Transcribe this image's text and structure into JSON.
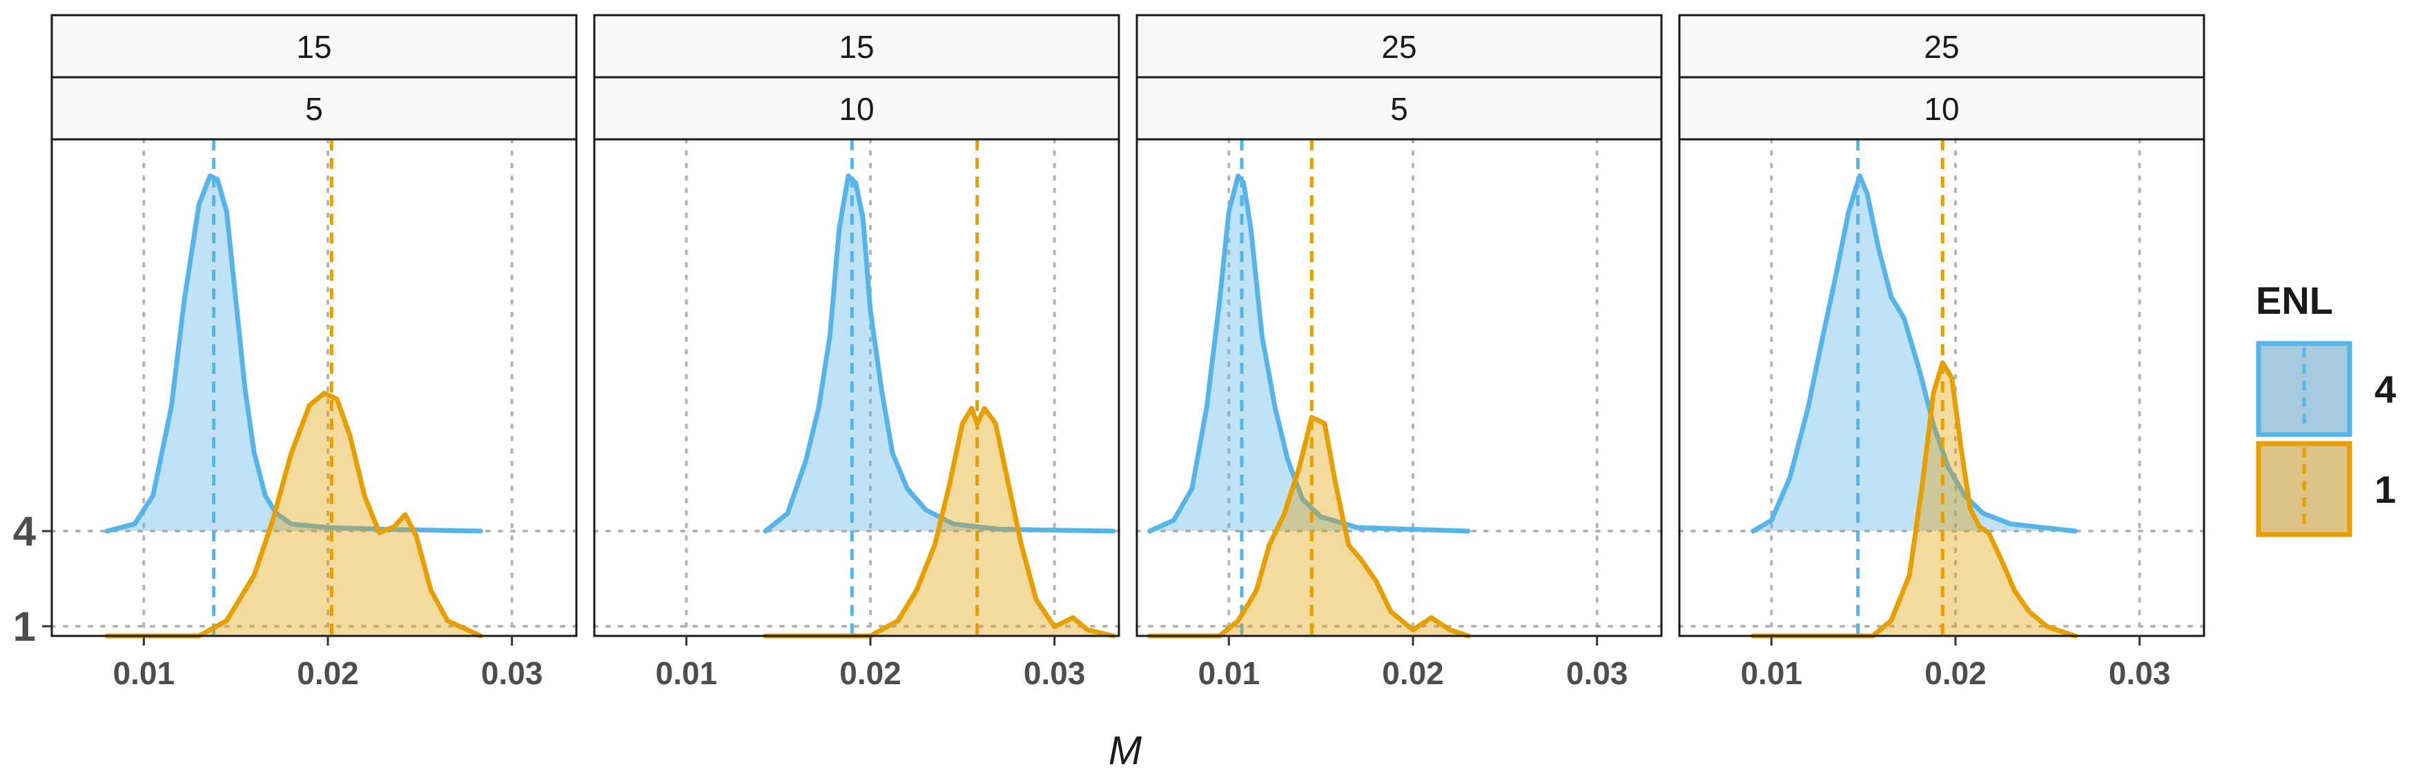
{
  "chart_data": {
    "type": "ridgeline-density",
    "xlabel": "M",
    "ylabel": "",
    "x_ticks": [
      "0.01",
      "0.02",
      "0.03"
    ],
    "x_tick_values": [
      0.01,
      0.02,
      0.03
    ],
    "xlim": [
      0.005,
      0.0335
    ],
    "y_ticks": [
      "4",
      "1"
    ],
    "legend": {
      "title": "ENL",
      "position": "right",
      "entries": [
        {
          "label": "4",
          "color": "#56B4E9"
        },
        {
          "label": "1",
          "color": "#E69F00"
        }
      ]
    },
    "colors": {
      "4": "#56B4E9",
      "1": "#E69F00"
    },
    "panels": [
      {
        "strip_top": "15",
        "strip_bottom": "5",
        "series": [
          {
            "name": "4",
            "mean": 0.0138,
            "x": [
              0.008,
              0.0095,
              0.0105,
              0.0115,
              0.0122,
              0.013,
              0.0136,
              0.014,
              0.0145,
              0.015,
              0.0155,
              0.016,
              0.0166,
              0.0172,
              0.018,
              0.02,
              0.023,
              0.0283
            ],
            "y": [
              0.0,
              0.02,
              0.1,
              0.35,
              0.65,
              0.92,
              1.0,
              0.99,
              0.9,
              0.65,
              0.4,
              0.22,
              0.1,
              0.05,
              0.02,
              0.01,
              0.005,
              0.0
            ]
          },
          {
            "name": "1",
            "mean": 0.0202,
            "x": [
              0.008,
              0.013,
              0.0145,
              0.016,
              0.017,
              0.018,
              0.019,
              0.0198,
              0.0205,
              0.0212,
              0.022,
              0.0228,
              0.0236,
              0.0242,
              0.0248,
              0.0256,
              0.0265,
              0.0283
            ],
            "y": [
              0.0,
              0.0,
              0.05,
              0.2,
              0.38,
              0.6,
              0.76,
              0.8,
              0.78,
              0.66,
              0.46,
              0.34,
              0.36,
              0.4,
              0.33,
              0.15,
              0.05,
              0.0
            ]
          }
        ]
      },
      {
        "strip_top": "15",
        "strip_bottom": "10",
        "series": [
          {
            "name": "4",
            "mean": 0.019,
            "x": [
              0.0143,
              0.0155,
              0.0165,
              0.0172,
              0.0178,
              0.0183,
              0.0188,
              0.0192,
              0.0196,
              0.02,
              0.0206,
              0.0212,
              0.022,
              0.023,
              0.0245,
              0.027,
              0.0332
            ],
            "y": [
              0.0,
              0.05,
              0.2,
              0.35,
              0.55,
              0.85,
              1.0,
              0.98,
              0.88,
              0.62,
              0.4,
              0.22,
              0.12,
              0.06,
              0.02,
              0.005,
              0.0
            ]
          },
          {
            "name": "1",
            "mean": 0.0258,
            "x": [
              0.0143,
              0.02,
              0.0215,
              0.0225,
              0.0235,
              0.0243,
              0.025,
              0.0255,
              0.0258,
              0.0262,
              0.0268,
              0.0275,
              0.0282,
              0.029,
              0.03,
              0.031,
              0.0318,
              0.0332
            ],
            "y": [
              0.0,
              0.0,
              0.05,
              0.15,
              0.3,
              0.5,
              0.7,
              0.75,
              0.7,
              0.75,
              0.7,
              0.5,
              0.3,
              0.12,
              0.03,
              0.06,
              0.02,
              0.0
            ]
          }
        ]
      },
      {
        "strip_top": "25",
        "strip_bottom": "5",
        "series": [
          {
            "name": "4",
            "mean": 0.0107,
            "x": [
              0.0057,
              0.007,
              0.008,
              0.0088,
              0.0095,
              0.01,
              0.0105,
              0.0108,
              0.0112,
              0.0118,
              0.0125,
              0.0132,
              0.014,
              0.015,
              0.017,
              0.023
            ],
            "y": [
              0.0,
              0.03,
              0.12,
              0.35,
              0.65,
              0.9,
              1.0,
              0.98,
              0.85,
              0.55,
              0.35,
              0.2,
              0.09,
              0.04,
              0.01,
              0.0
            ]
          },
          {
            "name": "1",
            "mean": 0.0145,
            "x": [
              0.0057,
              0.0095,
              0.0105,
              0.0115,
              0.0122,
              0.013,
              0.0138,
              0.0145,
              0.0152,
              0.0158,
              0.0165,
              0.0172,
              0.018,
              0.0188,
              0.02,
              0.021,
              0.022,
              0.023
            ],
            "y": [
              0.0,
              0.0,
              0.05,
              0.15,
              0.3,
              0.4,
              0.55,
              0.72,
              0.7,
              0.5,
              0.3,
              0.25,
              0.18,
              0.08,
              0.02,
              0.06,
              0.02,
              0.0
            ]
          }
        ]
      },
      {
        "strip_top": "25",
        "strip_bottom": "10",
        "series": [
          {
            "name": "4",
            "mean": 0.0147,
            "x": [
              0.009,
              0.01,
              0.011,
              0.012,
              0.0128,
              0.0135,
              0.0142,
              0.0148,
              0.0152,
              0.0158,
              0.0165,
              0.0172,
              0.018,
              0.0188,
              0.0196,
              0.0205,
              0.0215,
              0.023,
              0.0265
            ],
            "y": [
              0.0,
              0.03,
              0.15,
              0.35,
              0.55,
              0.72,
              0.9,
              1.0,
              0.95,
              0.8,
              0.66,
              0.6,
              0.46,
              0.3,
              0.18,
              0.1,
              0.05,
              0.02,
              0.0
            ]
          },
          {
            "name": "1",
            "mean": 0.0193,
            "x": [
              0.009,
              0.0155,
              0.0165,
              0.0175,
              0.0182,
              0.0188,
              0.0193,
              0.0198,
              0.0203,
              0.0208,
              0.0213,
              0.0218,
              0.0225,
              0.0232,
              0.024,
              0.025,
              0.0265
            ],
            "y": [
              0.0,
              0.0,
              0.05,
              0.2,
              0.5,
              0.8,
              0.9,
              0.85,
              0.62,
              0.42,
              0.36,
              0.34,
              0.25,
              0.15,
              0.08,
              0.03,
              0.0
            ]
          }
        ]
      }
    ]
  }
}
